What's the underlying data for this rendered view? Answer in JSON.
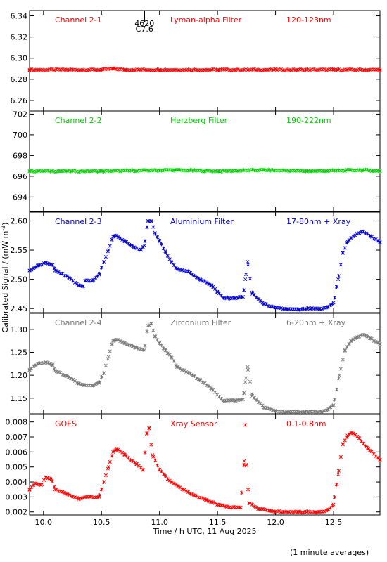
{
  "chart_data": {
    "type": "scatter",
    "xlabel": "Time / h UTC, 11 Aug 2025",
    "ylabel": "Calibrated Signal / (mW m",
    "ylabel_sup": "-2",
    "ylabel_end": ")",
    "footnote": "(1 minute averages)",
    "xlim": [
      9.88,
      12.9
    ],
    "xticks": [
      "10.0",
      "10.5",
      "11.0",
      "11.5",
      "12.0",
      "12.5"
    ],
    "marker": {
      "label_top": "4620",
      "label_bottom": "C7.6",
      "x": 10.87
    },
    "panels": [
      {
        "name": "Channel 2-1",
        "filter": "Lyman-alpha Filter",
        "band": "120-123nm",
        "color": "#ff0000",
        "ylim": [
          6.25,
          6.345
        ],
        "yticks": [
          "6.26",
          "6.28",
          "6.30",
          "6.32",
          "6.34"
        ],
        "points": [
          [
            9.88,
            6.289
          ],
          [
            10.2,
            6.289
          ],
          [
            10.5,
            6.289
          ],
          [
            10.6,
            6.29
          ],
          [
            10.7,
            6.289
          ],
          [
            11.0,
            6.289
          ],
          [
            11.5,
            6.289
          ],
          [
            12.0,
            6.289
          ],
          [
            12.5,
            6.289
          ],
          [
            12.9,
            6.289
          ]
        ]
      },
      {
        "name": "Channel 2-2",
        "filter": "Herzberg Filter",
        "band": "190-222nm",
        "color": "#00d000",
        "ylim": [
          692.6,
          702.3
        ],
        "yticks": [
          "694",
          "696",
          "698",
          "700",
          "702"
        ],
        "points": [
          [
            9.88,
            696.5
          ],
          [
            10.5,
            696.5
          ],
          [
            11.12,
            696.6
          ],
          [
            11.5,
            696.5
          ],
          [
            11.9,
            696.6
          ],
          [
            12.3,
            696.5
          ],
          [
            12.75,
            696.6
          ],
          [
            12.9,
            696.5
          ]
        ]
      },
      {
        "name": "Channel 2-3",
        "filter": "Aluminium Filter",
        "band": "17-80nm + Xray",
        "color": "#0000cc",
        "ylim": [
          2.443,
          2.615
        ],
        "yticks": [
          "2.45",
          "2.50",
          "2.55",
          "2.60"
        ],
        "points": [
          [
            9.88,
            2.515
          ],
          [
            9.95,
            2.523
          ],
          [
            10.02,
            2.528
          ],
          [
            10.08,
            2.525
          ],
          [
            10.1,
            2.515
          ],
          [
            10.15,
            2.51
          ],
          [
            10.22,
            2.503
          ],
          [
            10.3,
            2.49
          ],
          [
            10.34,
            2.488
          ],
          [
            10.36,
            2.498
          ],
          [
            10.42,
            2.497
          ],
          [
            10.48,
            2.508
          ],
          [
            10.52,
            2.53
          ],
          [
            10.56,
            2.55
          ],
          [
            10.6,
            2.573
          ],
          [
            10.63,
            2.575
          ],
          [
            10.7,
            2.565
          ],
          [
            10.78,
            2.555
          ],
          [
            10.84,
            2.55
          ],
          [
            10.87,
            2.558
          ],
          [
            10.9,
            2.6
          ],
          [
            10.93,
            2.6
          ],
          [
            10.96,
            2.58
          ],
          [
            11.0,
            2.565
          ],
          [
            11.05,
            2.548
          ],
          [
            11.1,
            2.53
          ],
          [
            11.15,
            2.518
          ],
          [
            11.25,
            2.513
          ],
          [
            11.35,
            2.5
          ],
          [
            11.45,
            2.49
          ],
          [
            11.5,
            2.478
          ],
          [
            11.55,
            2.468
          ],
          [
            11.65,
            2.468
          ],
          [
            11.72,
            2.47
          ],
          [
            11.74,
            2.5
          ],
          [
            11.76,
            2.53
          ],
          [
            11.8,
            2.475
          ],
          [
            11.9,
            2.458
          ],
          [
            12.0,
            2.451
          ],
          [
            12.1,
            2.449
          ],
          [
            12.2,
            2.448
          ],
          [
            12.3,
            2.45
          ],
          [
            12.38,
            2.449
          ],
          [
            12.45,
            2.452
          ],
          [
            12.5,
            2.46
          ],
          [
            12.54,
            2.5
          ],
          [
            12.58,
            2.545
          ],
          [
            12.62,
            2.565
          ],
          [
            12.7,
            2.578
          ],
          [
            12.76,
            2.582
          ],
          [
            12.82,
            2.574
          ],
          [
            12.9,
            2.563
          ]
        ]
      },
      {
        "name": "Channel 2-4",
        "filter": "Zirconium Filter",
        "band": "6-20nm + Xray",
        "color": "#777777",
        "ylim": [
          1.116,
          1.335
        ],
        "yticks": [
          "1.15",
          "1.20",
          "1.25",
          "1.30"
        ],
        "points": [
          [
            9.88,
            1.212
          ],
          [
            9.95,
            1.225
          ],
          [
            10.02,
            1.228
          ],
          [
            10.08,
            1.222
          ],
          [
            10.1,
            1.21
          ],
          [
            10.2,
            1.198
          ],
          [
            10.3,
            1.182
          ],
          [
            10.35,
            1.178
          ],
          [
            10.42,
            1.177
          ],
          [
            10.48,
            1.183
          ],
          [
            10.52,
            1.205
          ],
          [
            10.56,
            1.24
          ],
          [
            10.6,
            1.275
          ],
          [
            10.63,
            1.278
          ],
          [
            10.7,
            1.27
          ],
          [
            10.8,
            1.26
          ],
          [
            10.87,
            1.255
          ],
          [
            10.9,
            1.308
          ],
          [
            10.93,
            1.313
          ],
          [
            10.96,
            1.285
          ],
          [
            11.0,
            1.27
          ],
          [
            11.05,
            1.255
          ],
          [
            11.1,
            1.24
          ],
          [
            11.15,
            1.218
          ],
          [
            11.25,
            1.205
          ],
          [
            11.35,
            1.19
          ],
          [
            11.45,
            1.17
          ],
          [
            11.55,
            1.145
          ],
          [
            11.65,
            1.145
          ],
          [
            11.72,
            1.147
          ],
          [
            11.74,
            1.185
          ],
          [
            11.76,
            1.218
          ],
          [
            11.8,
            1.155
          ],
          [
            11.9,
            1.13
          ],
          [
            12.0,
            1.122
          ],
          [
            12.1,
            1.12
          ],
          [
            12.2,
            1.12
          ],
          [
            12.3,
            1.121
          ],
          [
            12.4,
            1.12
          ],
          [
            12.45,
            1.124
          ],
          [
            12.5,
            1.135
          ],
          [
            12.55,
            1.2
          ],
          [
            12.6,
            1.255
          ],
          [
            12.65,
            1.275
          ],
          [
            12.7,
            1.283
          ],
          [
            12.76,
            1.288
          ],
          [
            12.82,
            1.28
          ],
          [
            12.9,
            1.268
          ]
        ]
      },
      {
        "name": "GOES",
        "filter": "Xray Sensor",
        "band": "0.1-0.8nm",
        "color": "#ff0000",
        "ylim": [
          0.0018,
          0.0085
        ],
        "yticks": [
          "0.002",
          "0.003",
          "0.004",
          "0.005",
          "0.006",
          "0.007",
          "0.008"
        ],
        "points": [
          [
            9.88,
            0.0035
          ],
          [
            9.93,
            0.0039
          ],
          [
            9.98,
            0.0038
          ],
          [
            10.02,
            0.0043
          ],
          [
            10.07,
            0.0042
          ],
          [
            10.1,
            0.0035
          ],
          [
            10.2,
            0.0032
          ],
          [
            10.3,
            0.0029
          ],
          [
            10.4,
            0.003
          ],
          [
            10.48,
            0.003
          ],
          [
            10.52,
            0.004
          ],
          [
            10.56,
            0.005
          ],
          [
            10.6,
            0.006
          ],
          [
            10.63,
            0.0062
          ],
          [
            10.7,
            0.0058
          ],
          [
            10.8,
            0.0052
          ],
          [
            10.86,
            0.0048
          ],
          [
            10.89,
            0.0072
          ],
          [
            10.91,
            0.0076
          ],
          [
            10.94,
            0.0058
          ],
          [
            11.0,
            0.0048
          ],
          [
            11.1,
            0.004
          ],
          [
            11.2,
            0.0035
          ],
          [
            11.3,
            0.0031
          ],
          [
            11.4,
            0.0028
          ],
          [
            11.5,
            0.0025
          ],
          [
            11.6,
            0.0023
          ],
          [
            11.7,
            0.0023
          ],
          [
            11.73,
            0.0054
          ],
          [
            11.75,
            0.0051
          ],
          [
            11.77,
            0.0026
          ],
          [
            11.85,
            0.0022
          ],
          [
            11.95,
            0.0021
          ],
          [
            12.05,
            0.002
          ],
          [
            12.2,
            0.002
          ],
          [
            12.35,
            0.002
          ],
          [
            12.45,
            0.0021
          ],
          [
            12.5,
            0.0025
          ],
          [
            12.54,
            0.0045
          ],
          [
            12.58,
            0.0065
          ],
          [
            12.62,
            0.0071
          ],
          [
            12.66,
            0.0073
          ],
          [
            12.72,
            0.0069
          ],
          [
            12.8,
            0.0062
          ],
          [
            12.9,
            0.0055
          ]
        ]
      }
    ],
    "spikes": [
      {
        "panel": 4,
        "x": 11.74,
        "y": 0.0078
      }
    ]
  }
}
